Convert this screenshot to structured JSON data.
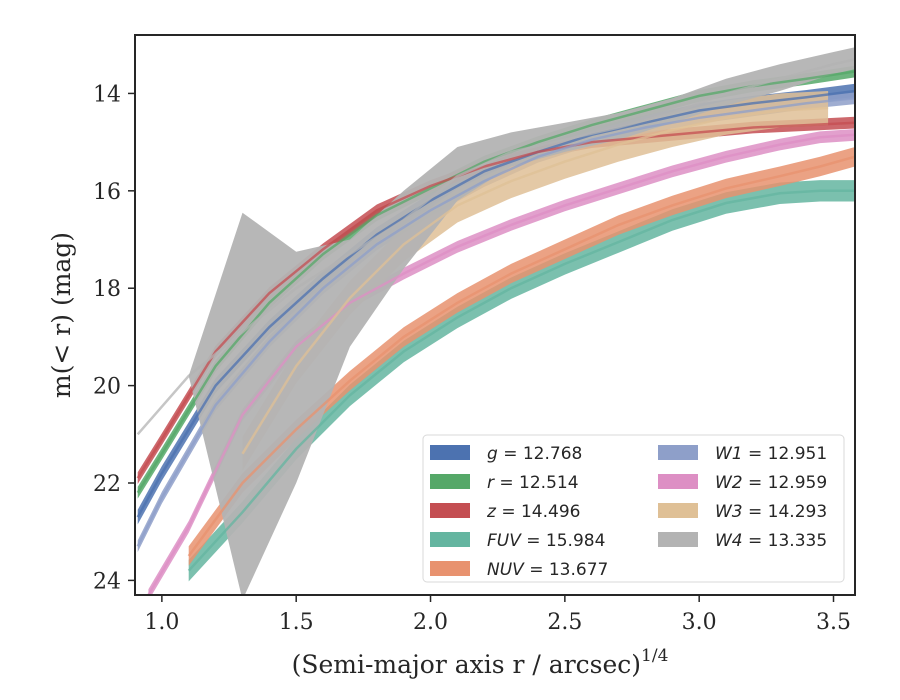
{
  "chart_data": {
    "type": "line",
    "xlabel": "(Semi-major axis r / arcsec)",
    "xlabel_exponent": "1/4",
    "ylabel": "m(< r) (mag)",
    "xlim": [
      0.9,
      3.58
    ],
    "ylim": [
      24.3,
      12.8
    ],
    "y_inverted": true,
    "x_ticks": [
      1.0,
      1.5,
      2.0,
      2.5,
      3.0,
      3.5
    ],
    "x_tick_labels": [
      "1.0",
      "1.5",
      "2.0",
      "2.5",
      "3.0",
      "3.5"
    ],
    "y_ticks": [
      14,
      16,
      18,
      20,
      22,
      24
    ],
    "y_tick_labels": [
      "14",
      "16",
      "18",
      "20",
      "22",
      "24"
    ],
    "grid": false,
    "legend_position": "lower-right",
    "series": [
      {
        "name": "g",
        "value": "12.768",
        "color": "#4c72b0",
        "x": [
          0.91,
          1.0,
          1.2,
          1.4,
          1.6,
          1.8,
          2.0,
          2.2,
          2.4,
          2.6,
          2.8,
          3.0,
          3.2,
          3.4,
          3.58
        ],
        "y": [
          22.7,
          21.8,
          20.0,
          18.8,
          17.8,
          16.9,
          16.2,
          15.6,
          15.2,
          14.85,
          14.6,
          14.35,
          14.2,
          14.08,
          13.95
        ],
        "band": 0.15
      },
      {
        "name": "r",
        "value": "12.514",
        "color": "#55a868",
        "x": [
          0.91,
          1.0,
          1.2,
          1.4,
          1.6,
          1.8,
          2.0,
          2.2,
          2.4,
          2.6,
          2.8,
          3.0,
          3.2,
          3.4,
          3.58
        ],
        "y": [
          22.2,
          21.4,
          19.6,
          18.3,
          17.3,
          16.5,
          15.95,
          15.4,
          15.0,
          14.65,
          14.35,
          14.05,
          13.85,
          13.7,
          13.55
        ],
        "band": 0.12
      },
      {
        "name": "z",
        "value": "14.496",
        "color": "#c44e52",
        "x": [
          0.91,
          1.0,
          1.2,
          1.4,
          1.6,
          1.8,
          2.0,
          2.2,
          2.4,
          2.6,
          2.8,
          3.0,
          3.2,
          3.4,
          3.58
        ],
        "y": [
          21.9,
          21.1,
          19.3,
          18.1,
          17.2,
          16.4,
          15.9,
          15.5,
          15.2,
          15.0,
          14.9,
          14.8,
          14.7,
          14.65,
          14.6
        ],
        "band": 0.12
      },
      {
        "name": "FUV",
        "value": "15.984",
        "color": "#64b5a0",
        "x": [
          1.1,
          1.3,
          1.5,
          1.7,
          1.9,
          2.1,
          2.3,
          2.5,
          2.7,
          2.9,
          3.1,
          3.3,
          3.45,
          3.58
        ],
        "y": [
          23.8,
          22.6,
          21.3,
          20.2,
          19.3,
          18.6,
          18.0,
          17.5,
          17.05,
          16.6,
          16.25,
          16.05,
          16.0,
          16.0
        ],
        "band": 0.22
      },
      {
        "name": "NUV",
        "value": "13.677",
        "color": "#e8926f",
        "x": [
          1.1,
          1.3,
          1.5,
          1.7,
          1.9,
          2.1,
          2.3,
          2.5,
          2.7,
          2.9,
          3.1,
          3.3,
          3.45,
          3.58
        ],
        "y": [
          23.5,
          22.0,
          20.9,
          19.9,
          19.0,
          18.3,
          17.7,
          17.2,
          16.7,
          16.3,
          15.95,
          15.7,
          15.5,
          15.3
        ],
        "band": 0.2
      },
      {
        "name": "W1",
        "value": "12.951",
        "color": "#8e9fc9",
        "x": [
          0.91,
          1.0,
          1.2,
          1.4,
          1.6,
          1.8,
          2.0,
          2.2,
          2.4,
          2.6,
          2.8,
          3.0,
          3.2,
          3.4,
          3.58
        ],
        "y": [
          23.3,
          22.3,
          20.4,
          19.1,
          18.0,
          17.1,
          16.4,
          15.8,
          15.3,
          14.95,
          14.7,
          14.5,
          14.35,
          14.2,
          14.1
        ],
        "band": 0.12
      },
      {
        "name": "W2",
        "value": "12.959",
        "color": "#dd8fc4",
        "x": [
          0.95,
          1.1,
          1.3,
          1.5,
          1.7,
          1.9,
          2.1,
          2.3,
          2.5,
          2.7,
          2.9,
          3.1,
          3.3,
          3.45,
          3.58
        ],
        "y": [
          24.3,
          22.9,
          20.6,
          19.2,
          18.3,
          17.7,
          17.15,
          16.7,
          16.3,
          15.95,
          15.6,
          15.3,
          15.05,
          14.9,
          14.85
        ],
        "band": 0.12
      },
      {
        "name": "W3",
        "value": "14.293",
        "color": "#dfc096",
        "x": [
          1.3,
          1.5,
          1.7,
          1.9,
          2.1,
          2.3,
          2.5,
          2.7,
          2.9,
          3.1,
          3.3,
          3.48
        ],
        "y": [
          21.4,
          19.6,
          18.2,
          17.1,
          16.3,
          15.8,
          15.4,
          15.05,
          14.75,
          14.5,
          14.35,
          14.3
        ],
        "band": 0.35
      },
      {
        "name": "W4",
        "value": "13.335",
        "color": "#b3b3b3",
        "x": [
          0.91,
          1.1,
          1.3,
          1.5,
          1.7,
          1.9,
          2.1,
          2.3,
          2.5,
          2.7,
          2.9,
          3.1,
          3.3,
          3.5,
          3.58
        ],
        "y": [
          21.0,
          19.8,
          18.9,
          18.0,
          17.3,
          16.6,
          15.7,
          15.2,
          14.95,
          14.7,
          14.4,
          14.0,
          13.7,
          13.4,
          13.3
        ],
        "band": 0.3,
        "band_upper": [
          21.0,
          19.8,
          16.45,
          17.25,
          17.0,
          16.0,
          15.1,
          14.8,
          14.6,
          14.4,
          14.1,
          13.7,
          13.4,
          13.15,
          13.05
        ],
        "band_lower": [
          21.0,
          19.8,
          24.4,
          22.0,
          19.2,
          17.6,
          16.2,
          15.5,
          15.2,
          14.95,
          14.6,
          14.25,
          13.95,
          13.6,
          13.5
        ]
      }
    ]
  }
}
